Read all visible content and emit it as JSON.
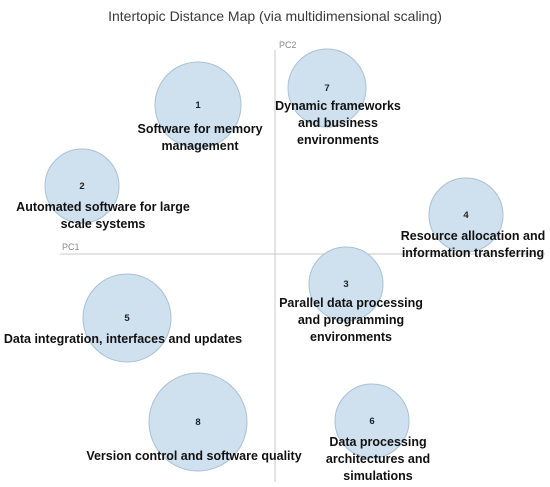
{
  "title": "Intertopic Distance Map (via multidimensional scaling)",
  "axes": {
    "pc1_label": "PC1",
    "pc2_label": "PC2"
  },
  "colors": {
    "bubble_fill": "#cfe0ee",
    "bubble_stroke": "#a9c1d4",
    "axis": "#c8c8c8"
  },
  "topics": [
    {
      "id": "1",
      "label_lines": [
        "Software for memory",
        "management"
      ]
    },
    {
      "id": "2",
      "label_lines": [
        "Automated software for large",
        "scale systems"
      ]
    },
    {
      "id": "3",
      "label_lines": [
        "Parallel data processing",
        "and programming",
        "environments"
      ]
    },
    {
      "id": "4",
      "label_lines": [
        "Resource allocation and",
        "information transferring"
      ]
    },
    {
      "id": "5",
      "label_lines": [
        "Data integration, interfaces and updates"
      ]
    },
    {
      "id": "6",
      "label_lines": [
        "Data processing",
        "architectures and",
        "simulations"
      ]
    },
    {
      "id": "7",
      "label_lines": [
        "Dynamic frameworks",
        "and business",
        "environments"
      ]
    },
    {
      "id": "8",
      "label_lines": [
        "Version control and software quality"
      ]
    }
  ]
}
